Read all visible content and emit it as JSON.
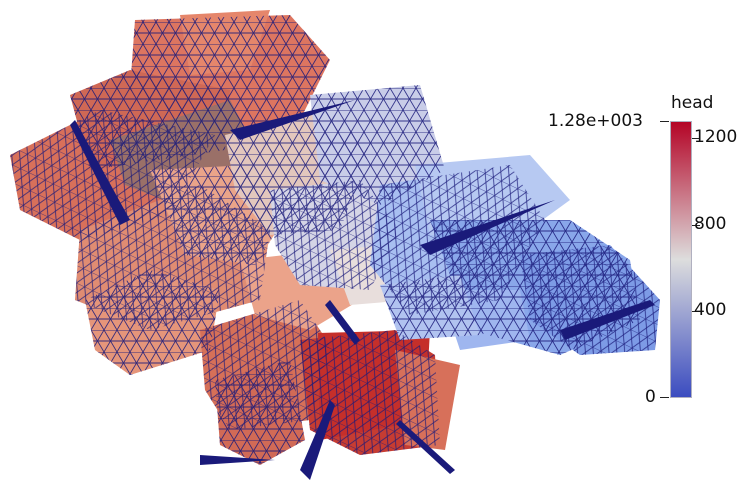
{
  "colorbar": {
    "title": "head",
    "max_label": "1.28e+003",
    "min_label": "0",
    "range": [
      0,
      1280
    ],
    "ticks": [
      {
        "value": 1200,
        "label": "1200"
      },
      {
        "value": 800,
        "label": "800"
      },
      {
        "value": 400,
        "label": "400"
      }
    ],
    "colors": [
      "#3b4cc0",
      "#dddddd",
      "#b40426"
    ]
  },
  "scene": {
    "description_type": "mesh-rendering",
    "mesh_edge_color": "#1a1a7a"
  }
}
